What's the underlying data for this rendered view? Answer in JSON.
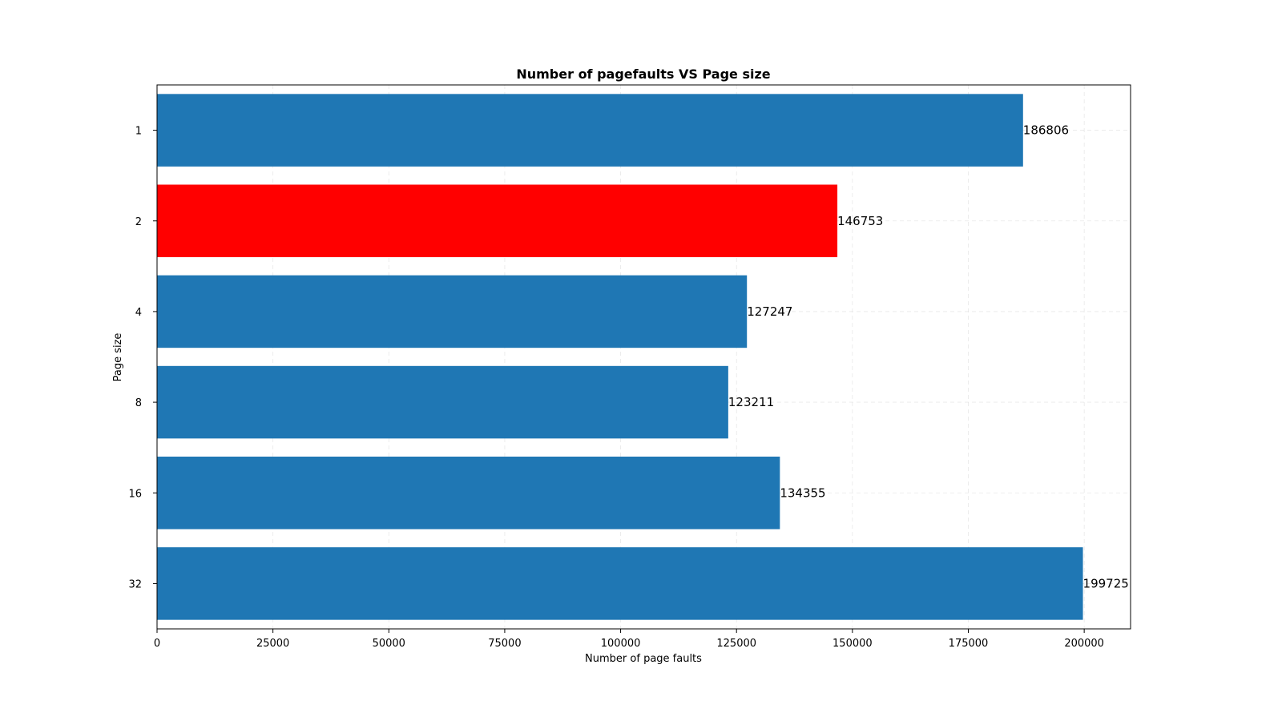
{
  "chart_data": {
    "type": "bar",
    "orientation": "horizontal",
    "title": "Number of pagefaults VS Page size",
    "xlabel": "Number of page faults",
    "ylabel": "Page size",
    "categories": [
      "1",
      "2",
      "4",
      "8",
      "16",
      "32"
    ],
    "values": [
      186806,
      146753,
      127247,
      123211,
      134355,
      199725
    ],
    "value_labels": [
      "186806",
      "146753",
      "127247",
      "123211",
      "134355",
      "199725"
    ],
    "bar_colors": [
      "#1f77b4",
      "#ff0000",
      "#1f77b4",
      "#1f77b4",
      "#1f77b4",
      "#1f77b4"
    ],
    "xlim": [
      0,
      210000
    ],
    "xticks": [
      0,
      25000,
      50000,
      75000,
      100000,
      125000,
      150000,
      175000,
      200000
    ],
    "xtick_labels": [
      "0",
      "25000",
      "50000",
      "75000",
      "100000",
      "125000",
      "150000",
      "175000",
      "200000"
    ],
    "grid": true,
    "grid_style": "dashed"
  }
}
